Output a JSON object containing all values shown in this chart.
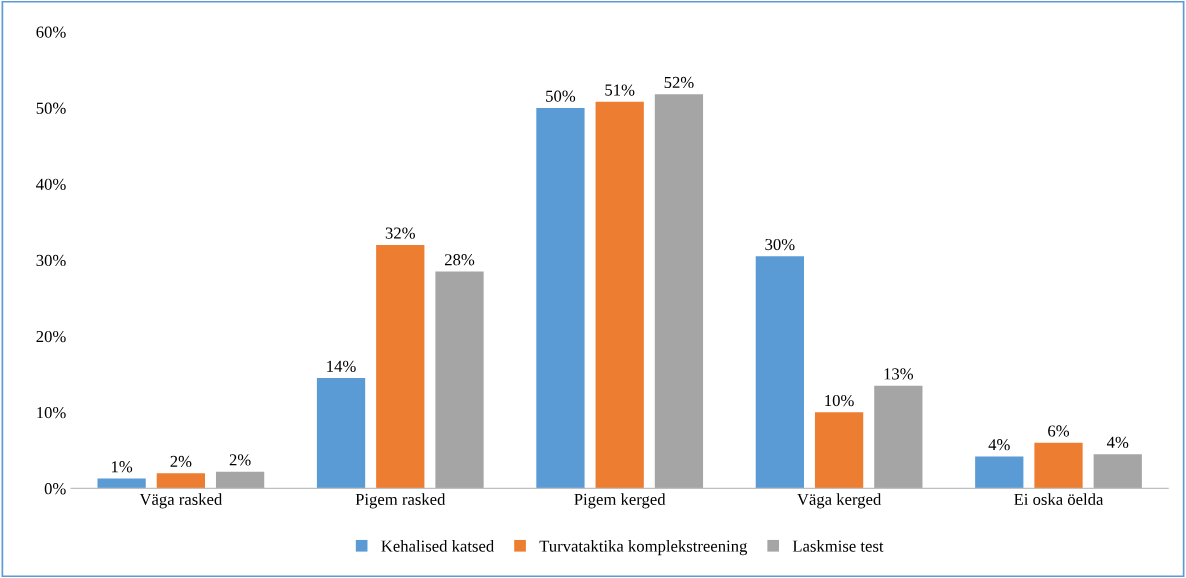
{
  "chart_data": {
    "type": "bar",
    "categories": [
      "Väga rasked",
      "Pigem rasked",
      "Pigem kerged",
      "Väga kerged",
      "Ei oska öelda"
    ],
    "series": [
      {
        "name": "Kehalised katsed",
        "color": "#5b9bd5",
        "values": [
          1.3,
          14.5,
          50,
          30.5,
          4.2
        ],
        "value_labels": [
          "1%",
          "14%",
          "50%",
          "30%",
          "4%"
        ]
      },
      {
        "name": "Turvataktika komplekstreening",
        "color": "#ed7d31",
        "values": [
          2,
          32,
          50.8,
          10,
          6
        ],
        "value_labels": [
          "2%",
          "32%",
          "51%",
          "10%",
          "6%"
        ]
      },
      {
        "name": "Laskmise test",
        "color": "#a5a5a5",
        "values": [
          2.2,
          28.5,
          51.8,
          13.5,
          4.5
        ],
        "value_labels": [
          "2%",
          "28%",
          "52%",
          "13%",
          "4%"
        ]
      }
    ],
    "ylim": [
      0,
      60
    ],
    "yticks": [
      {
        "value": 0,
        "label": "0%"
      },
      {
        "value": 10,
        "label": "10%"
      },
      {
        "value": 20,
        "label": "20%"
      },
      {
        "value": 30,
        "label": "30%"
      },
      {
        "value": 40,
        "label": "40%"
      },
      {
        "value": 50,
        "label": "50%"
      },
      {
        "value": 60,
        "label": "60%"
      }
    ],
    "grid": false,
    "legend": "bottom"
  }
}
